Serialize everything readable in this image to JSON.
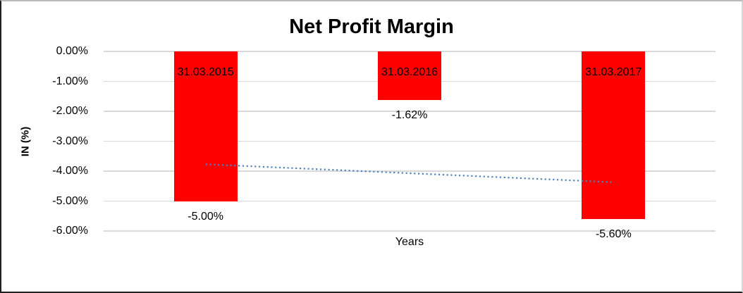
{
  "window": {
    "background": "#ffffff"
  },
  "chart_data": {
    "type": "bar",
    "title": "Net Profit Margin",
    "xlabel": "Years",
    "ylabel": "IN (%)",
    "categories": [
      "31.03.2015",
      "31.03.2016",
      "31.03.2017"
    ],
    "values": [
      -5.0,
      -1.62,
      -5.6
    ],
    "value_labels": [
      "-5.00%",
      "-1.62%",
      "-5.60%"
    ],
    "bar_color": "#ff0000",
    "label_color": "#000000",
    "ylim": [
      0,
      -6
    ],
    "yticks": [
      0,
      -1,
      -2,
      -3,
      -4,
      -5,
      -6
    ],
    "ytick_labels": [
      "0.00%",
      "-1.00%",
      "-2.00%",
      "-3.00%",
      "-4.00%",
      "-5.00%",
      "-6.00%"
    ],
    "grid": true,
    "gridline_color": "#d9d9d9",
    "legend": "none",
    "trendline": {
      "type": "linear",
      "style": "dotted",
      "color": "#4f81bd",
      "start_value": -3.77,
      "end_value": -4.37
    }
  }
}
